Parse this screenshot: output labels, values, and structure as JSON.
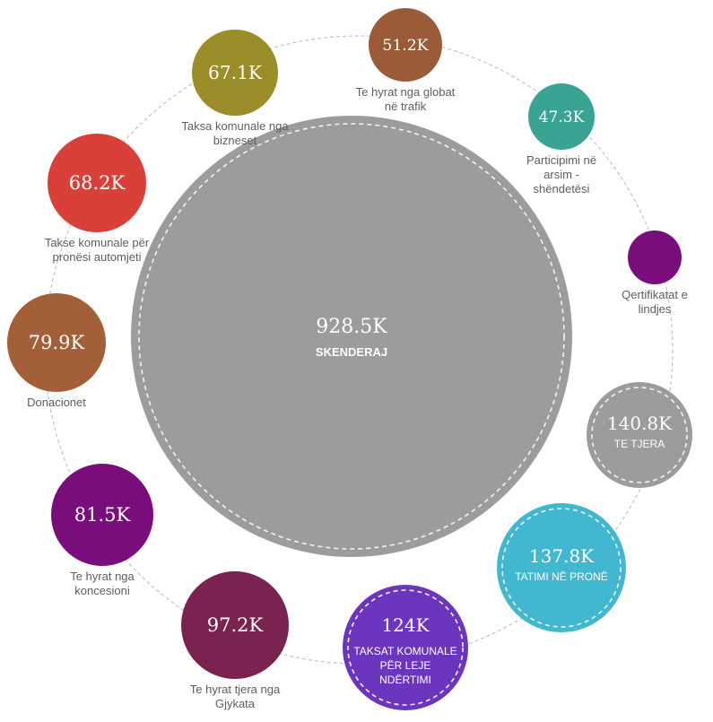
{
  "chart_data": {
    "type": "bubble",
    "center": {
      "label": "SKENDERAJ",
      "value": 928.5,
      "value_label": "928.5K",
      "color": "#9c9c9c"
    },
    "items": [
      {
        "value_label": "51.2K",
        "value": 51.2,
        "label": "Te hyrat nga globat në trafik",
        "color": "#9c5b38"
      },
      {
        "value_label": "47.3K",
        "value": 47.3,
        "label": "Participimi në arsim - shëndetësi",
        "color": "#39a394"
      },
      {
        "value_label": "",
        "value": null,
        "label": "Qertifikatat e lindjes",
        "color": "#7a0d7c"
      },
      {
        "value_label": "140.8K",
        "value": 140.8,
        "label": "TE TJERA",
        "color": "#9c9c9c"
      },
      {
        "value_label": "137.8K",
        "value": 137.8,
        "label": "TATIMI NË PRONË",
        "color": "#41b8cf"
      },
      {
        "value_label": "124K",
        "value": 124,
        "label": "TAKSAT KOMUNALE PËR LEJE NDËRTIMI",
        "color": "#6b35bd"
      },
      {
        "value_label": "97.2K",
        "value": 97.2,
        "label": "Te hyrat tjera nga Gjykata",
        "color": "#7a2350"
      },
      {
        "value_label": "81.5K",
        "value": 81.5,
        "label": "Te hyrat nga koncesioni",
        "color": "#7a0d7c"
      },
      {
        "value_label": "79.9K",
        "value": 79.9,
        "label": "Donacionet",
        "color": "#a36038"
      },
      {
        "value_label": "68.2K",
        "value": 68.2,
        "label": "Takse komunale për pronësi automjeti",
        "color": "#d9403a"
      },
      {
        "value_label": "67.1K",
        "value": 67.1,
        "label": "Taksa komunale nga bizneset",
        "color": "#9a8d2a"
      }
    ]
  }
}
